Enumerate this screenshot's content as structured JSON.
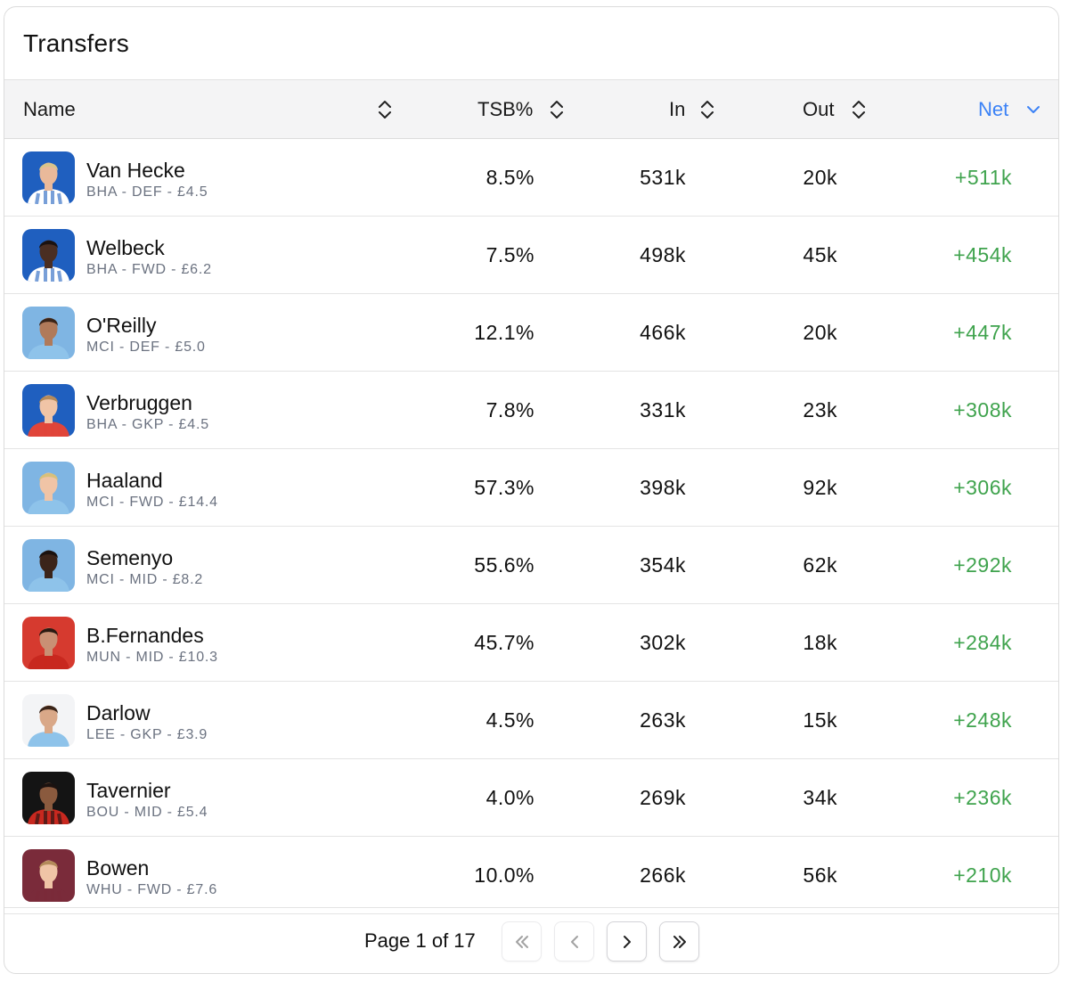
{
  "title": "Transfers",
  "columns": {
    "name": "Name",
    "tsb": "TSB%",
    "in": "In",
    "out": "Out",
    "net": "Net"
  },
  "sort": {
    "column": "net",
    "direction": "desc",
    "active_color": "#3b82f6"
  },
  "net_color": "#3fa34d",
  "rows": [
    {
      "name": "Van Hecke",
      "meta": "BHA - DEF - £4.5",
      "tsb": "8.5%",
      "in": "531k",
      "out": "20k",
      "net": "+511k",
      "avatar": {
        "icon": "player-avatar-icon",
        "bg": "#1f5fbf",
        "kit": "#ffffff",
        "kit2": "#1f5fbf",
        "skin": "#e9b99a",
        "hair": "#d9c48a"
      }
    },
    {
      "name": "Welbeck",
      "meta": "BHA - FWD - £6.2",
      "tsb": "7.5%",
      "in": "498k",
      "out": "45k",
      "net": "+454k",
      "avatar": {
        "icon": "player-avatar-icon",
        "bg": "#1f5fbf",
        "kit": "#ffffff",
        "kit2": "#1f5fbf",
        "skin": "#4a2e22",
        "hair": "#1b1210"
      }
    },
    {
      "name": "O'Reilly",
      "meta": "MCI - DEF - £5.0",
      "tsb": "12.1%",
      "in": "466k",
      "out": "20k",
      "net": "+447k",
      "avatar": {
        "icon": "player-avatar-icon",
        "bg": "#7fb5e3",
        "kit": "#8ec3ea",
        "kit2": "#8ec3ea",
        "skin": "#b07a5a",
        "hair": "#3a2418"
      }
    },
    {
      "name": "Verbruggen",
      "meta": "BHA - GKP - £4.5",
      "tsb": "7.8%",
      "in": "331k",
      "out": "23k",
      "net": "+308k",
      "avatar": {
        "icon": "player-avatar-icon",
        "bg": "#1f5fbf",
        "kit": "#e0453a",
        "kit2": "#e0453a",
        "skin": "#f0c4a6",
        "hair": "#b48a5a"
      }
    },
    {
      "name": "Haaland",
      "meta": "MCI - FWD - £14.4",
      "tsb": "57.3%",
      "in": "398k",
      "out": "92k",
      "net": "+306k",
      "avatar": {
        "icon": "player-avatar-icon",
        "bg": "#7fb5e3",
        "kit": "#8ec3ea",
        "kit2": "#8ec3ea",
        "skin": "#f0c4a6",
        "hair": "#d8c07a"
      }
    },
    {
      "name": "Semenyo",
      "meta": "MCI - MID - £8.2",
      "tsb": "55.6%",
      "in": "354k",
      "out": "62k",
      "net": "+292k",
      "avatar": {
        "icon": "player-avatar-icon",
        "bg": "#7fb5e3",
        "kit": "#8ec3ea",
        "kit2": "#8ec3ea",
        "skin": "#3b241a",
        "hair": "#1b1210"
      }
    },
    {
      "name": "B.Fernandes",
      "meta": "MUN - MID - £10.3",
      "tsb": "45.7%",
      "in": "302k",
      "out": "18k",
      "net": "+284k",
      "avatar": {
        "icon": "player-avatar-icon",
        "bg": "#d63a2f",
        "kit": "#c8281f",
        "kit2": "#c8281f",
        "skin": "#c99074",
        "hair": "#2a1a12"
      }
    },
    {
      "name": "Darlow",
      "meta": "LEE - GKP - £3.9",
      "tsb": "4.5%",
      "in": "263k",
      "out": "15k",
      "net": "+248k",
      "avatar": {
        "icon": "player-avatar-icon",
        "bg": "#f3f4f6",
        "kit": "#8ec3ea",
        "kit2": "#8ec3ea",
        "skin": "#d9a888",
        "hair": "#3a2418"
      }
    },
    {
      "name": "Tavernier",
      "meta": "BOU - MID - £5.4",
      "tsb": "4.0%",
      "in": "269k",
      "out": "34k",
      "net": "+236k",
      "avatar": {
        "icon": "player-avatar-icon",
        "bg": "#141414",
        "kit": "#c8281f",
        "kit2": "#141414",
        "skin": "#8a5a3e",
        "hair": "#1b1210"
      }
    },
    {
      "name": "Bowen",
      "meta": "WHU - FWD - £7.6",
      "tsb": "10.0%",
      "in": "266k",
      "out": "56k",
      "net": "+210k",
      "avatar": {
        "icon": "player-avatar-icon",
        "bg": "#7a2b3a",
        "kit": "#7a2b3a",
        "kit2": "#7a2b3a",
        "skin": "#f0c4a6",
        "hair": "#b48a5a"
      }
    }
  ],
  "pagination": {
    "label": "Page 1 of 17",
    "buttons": [
      {
        "icon": "double-chevron-left-icon",
        "disabled": true
      },
      {
        "icon": "chevron-left-icon",
        "disabled": true
      },
      {
        "icon": "chevron-right-icon",
        "disabled": false
      },
      {
        "icon": "double-chevron-right-icon",
        "disabled": false
      }
    ]
  }
}
